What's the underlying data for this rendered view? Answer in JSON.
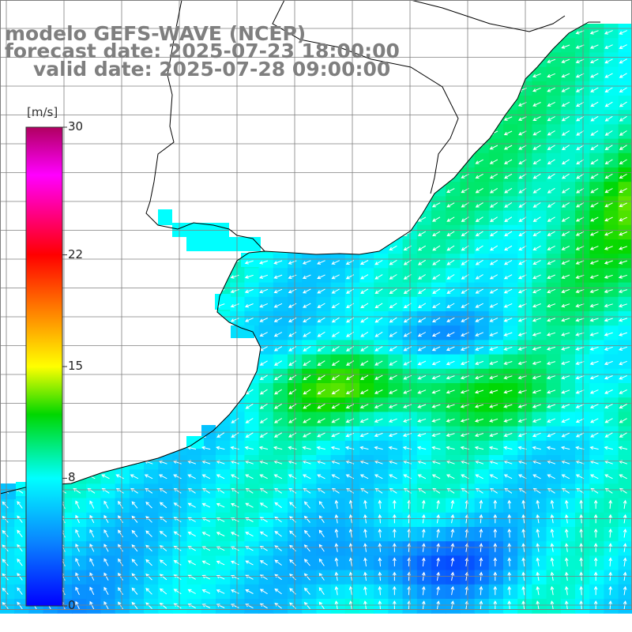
{
  "title": {
    "line1": "modelo GEFS-WAVE (NCEP)",
    "line2": "forecast date: 2025-07-23 18:00:00",
    "line3": "valid date: 2025-07-28 09:00:00"
  },
  "colorbar": {
    "unit": "[m/s]",
    "ticks": [
      {
        "value": 30,
        "label": "30"
      },
      {
        "value": 22,
        "label": "22"
      },
      {
        "value": 15,
        "label": "15"
      },
      {
        "value": 8,
        "label": "8"
      },
      {
        "value": 0,
        "label": "0"
      }
    ],
    "stops": [
      {
        "v": 0,
        "c": "#0000ff"
      },
      {
        "v": 4,
        "c": "#0a84ff"
      },
      {
        "v": 8,
        "c": "#00ffff"
      },
      {
        "v": 12,
        "c": "#00d700"
      },
      {
        "v": 15,
        "c": "#ffff00"
      },
      {
        "v": 22,
        "c": "#ff0000"
      },
      {
        "v": 27,
        "c": "#ff00ff"
      },
      {
        "v": 30,
        "c": "#b00060"
      }
    ]
  },
  "map": {
    "field": "wind speed",
    "colors": {
      "land": "#ffffff",
      "coast": "#000000",
      "grid": "#7f7f7f",
      "arrow": "#ffffff"
    }
  }
}
